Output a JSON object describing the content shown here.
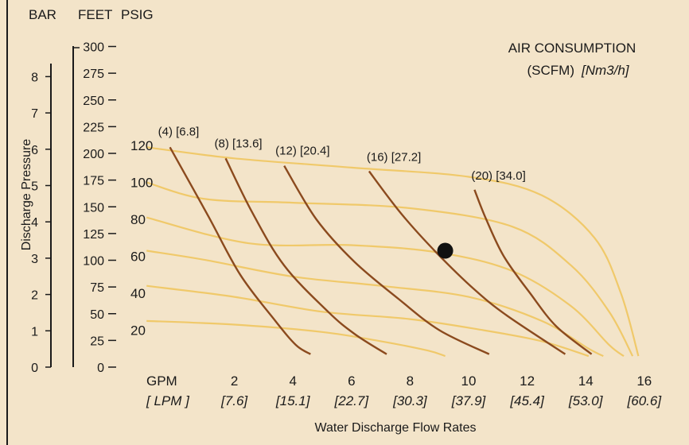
{
  "chart_data": {
    "type": "line",
    "title": "AIR CONSUMPTION",
    "subtitle": "(SCFM)",
    "subtitle_units": "[Nm3/h]",
    "xlabel": "Water Discharge Flow Rates",
    "ylabel": "Discharge Pressure",
    "x_unit_label": "GPM",
    "x_unit_label_alt": "[ LPM ]",
    "x_ticks": [
      2,
      4,
      6,
      8,
      10,
      12,
      14,
      16
    ],
    "x_ticks_alt": [
      "[7.6]",
      "[15.1]",
      "[22.7]",
      "[30.3]",
      "[37.9]",
      "[45.4]",
      "[53.0]",
      "[60.6]"
    ],
    "xlim": [
      0,
      16
    ],
    "y_axes": [
      {
        "name": "BAR",
        "ticks": [
          0,
          1,
          2,
          3,
          4,
          5,
          6,
          7,
          8
        ]
      },
      {
        "name": "FEET",
        "ticks": [
          0,
          25,
          50,
          75,
          100,
          125,
          150,
          175,
          200,
          225,
          250,
          275,
          300
        ]
      },
      {
        "name": "PSIG",
        "ticks": [
          20,
          40,
          60,
          80,
          100,
          120
        ]
      }
    ],
    "ylim_psig": [
      0,
      130
    ],
    "colors": {
      "background": "#f3e4c9",
      "air_curve": "#8b4a1e",
      "performance_curve": "#f0c96a",
      "point": "#111111"
    },
    "air_consumption_curves": [
      {
        "name": "(4) [6.8]",
        "points": [
          [
            -0.2,
            119
          ],
          [
            1.1,
            82
          ],
          [
            2.2,
            50
          ],
          [
            3.4,
            25
          ],
          [
            4.1,
            12
          ],
          [
            4.6,
            7
          ]
        ]
      },
      {
        "name": "(8) [13.6]",
        "points": [
          [
            1.7,
            113
          ],
          [
            2.6,
            84
          ],
          [
            3.7,
            55
          ],
          [
            5.2,
            30
          ],
          [
            6.1,
            18
          ],
          [
            7.2,
            7
          ]
        ]
      },
      {
        "name": "(12) [20.4]",
        "points": [
          [
            3.7,
            109
          ],
          [
            4.8,
            80
          ],
          [
            6.1,
            57
          ],
          [
            7.6,
            37
          ],
          [
            9.0,
            20
          ],
          [
            10.7,
            7
          ]
        ]
      },
      {
        "name": "(16) [27.2]",
        "points": [
          [
            6.6,
            106
          ],
          [
            7.7,
            83
          ],
          [
            8.9,
            62
          ],
          [
            10.2,
            42
          ],
          [
            11.3,
            28
          ],
          [
            13.3,
            7
          ]
        ]
      },
      {
        "name": "(20) [34.0]",
        "points": [
          [
            10.2,
            96
          ],
          [
            10.6,
            80
          ],
          [
            11.2,
            60
          ],
          [
            12.1,
            40
          ],
          [
            13.0,
            22
          ],
          [
            14.2,
            7
          ]
        ]
      }
    ],
    "performance_curves": [
      {
        "points": [
          [
            -1.0,
            119
          ],
          [
            2.0,
            113
          ],
          [
            6.0,
            108
          ],
          [
            10.0,
            103
          ],
          [
            12.5,
            93
          ],
          [
            14.3,
            70
          ],
          [
            15.2,
            40
          ],
          [
            15.8,
            6
          ]
        ]
      },
      {
        "points": [
          [
            -1.0,
            100
          ],
          [
            1.0,
            91
          ],
          [
            4.0,
            89
          ],
          [
            8.0,
            86
          ],
          [
            11.5,
            76
          ],
          [
            13.5,
            55
          ],
          [
            14.8,
            30
          ],
          [
            15.6,
            6
          ]
        ]
      },
      {
        "points": [
          [
            -1.0,
            81
          ],
          [
            2.5,
            67
          ],
          [
            6.0,
            66
          ],
          [
            9.0,
            62
          ],
          [
            11.5,
            52
          ],
          [
            13.5,
            33
          ],
          [
            14.8,
            12
          ],
          [
            15.3,
            6
          ]
        ]
      },
      {
        "points": [
          [
            -1.0,
            63
          ],
          [
            1.0,
            58
          ],
          [
            4.0,
            49
          ],
          [
            7.0,
            44
          ],
          [
            10.0,
            38
          ],
          [
            12.5,
            25
          ],
          [
            14.1,
            10
          ],
          [
            14.6,
            6
          ]
        ]
      },
      {
        "points": [
          [
            -1.0,
            44
          ],
          [
            2.0,
            38
          ],
          [
            5.0,
            30
          ],
          [
            8.0,
            26
          ],
          [
            10.5,
            20
          ],
          [
            12.5,
            14
          ],
          [
            14.1,
            6
          ]
        ]
      },
      {
        "points": [
          [
            -1.0,
            25
          ],
          [
            2.0,
            23
          ],
          [
            5.0,
            19
          ],
          [
            7.0,
            14
          ],
          [
            8.6,
            9
          ],
          [
            9.2,
            6
          ]
        ]
      }
    ],
    "operating_point": {
      "x": 9.2,
      "y": 63
    }
  }
}
